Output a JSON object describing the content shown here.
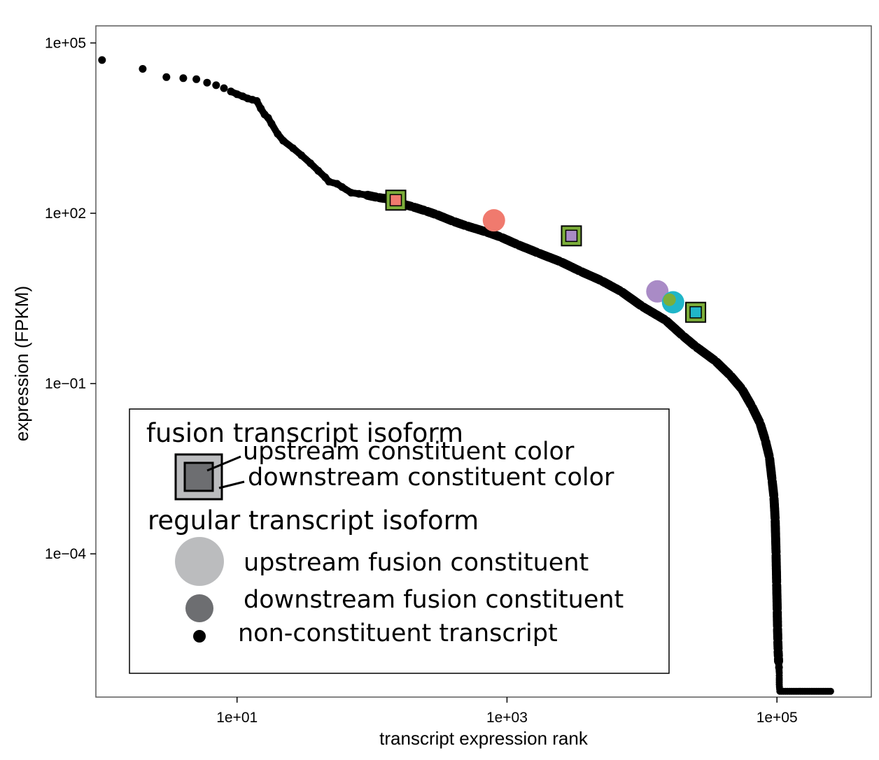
{
  "chart_data": {
    "type": "scatter",
    "title": "",
    "xlabel": "transcript expression rank",
    "ylabel": "expression (FPKM)",
    "x_scale": "log10",
    "y_scale": "log10",
    "xlim": [
      0.9,
      500000
    ],
    "ylim": [
      3e-07,
      200000
    ],
    "x_ticks": [
      {
        "value": 10,
        "label": "1e+01"
      },
      {
        "value": 1000,
        "label": "1e+03"
      },
      {
        "value": 100000,
        "label": "1e+05"
      }
    ],
    "y_ticks": [
      {
        "value": 100000,
        "label": "1e+05"
      },
      {
        "value": 100,
        "label": "1e+02"
      },
      {
        "value": 0.1,
        "label": "1e−01"
      },
      {
        "value": 0.0001,
        "label": "1e−04"
      }
    ],
    "grid": false,
    "legend_position": "bottom-left",
    "series": [
      {
        "role": "non-constituent transcript",
        "marker": "small black circle",
        "color": "#000000",
        "points": [
          [
            1,
            50000
          ],
          [
            2,
            35000
          ],
          [
            3,
            25000
          ],
          [
            4,
            24000
          ],
          [
            5,
            23000
          ],
          [
            6,
            20000
          ],
          [
            7,
            18000
          ],
          [
            8,
            16000
          ],
          [
            9,
            14000
          ],
          [
            10,
            12500
          ],
          [
            11,
            11500
          ],
          [
            12,
            10500
          ],
          [
            13,
            10000
          ],
          [
            14,
            9500
          ],
          [
            15,
            7000
          ],
          [
            16,
            5500
          ],
          [
            17,
            4800
          ],
          [
            18,
            3800
          ],
          [
            20,
            2500
          ],
          [
            22,
            1900
          ],
          [
            26,
            1400
          ],
          [
            30,
            1050
          ],
          [
            35,
            760
          ],
          [
            40,
            560
          ],
          [
            45,
            430
          ],
          [
            48,
            360
          ],
          [
            55,
            330
          ],
          [
            60,
            290
          ],
          [
            70,
            230
          ],
          [
            80,
            220
          ],
          [
            90,
            210
          ],
          [
            110,
            190
          ],
          [
            140,
            175
          ],
          [
            160,
            150
          ],
          [
            200,
            130
          ],
          [
            250,
            110
          ],
          [
            300,
            95
          ],
          [
            400,
            72
          ],
          [
            500,
            60
          ],
          [
            700,
            47
          ],
          [
            900,
            38
          ],
          [
            1200,
            28
          ],
          [
            1700,
            20
          ],
          [
            2500,
            14
          ],
          [
            3500,
            9.5
          ],
          [
            5000,
            6.5
          ],
          [
            7000,
            4.2
          ],
          [
            10000,
            2.3
          ],
          [
            15000,
            1.3
          ],
          [
            20000,
            0.7
          ],
          [
            25000,
            0.45
          ],
          [
            35000,
            0.25
          ],
          [
            45000,
            0.14
          ],
          [
            55000,
            0.08
          ],
          [
            65000,
            0.04
          ],
          [
            75000,
            0.02
          ],
          [
            82000,
            0.01
          ],
          [
            88000,
            0.005
          ],
          [
            92000,
            0.002
          ],
          [
            95000,
            0.001
          ],
          [
            97000,
            0.0004
          ],
          [
            98500,
            0.0001
          ],
          [
            99500,
            3e-05
          ],
          [
            100500,
            1e-05
          ],
          [
            101000,
            5e-06
          ],
          [
            101500,
            3e-06
          ],
          [
            102000,
            2e-06
          ],
          [
            102500,
            1.5e-06
          ],
          [
            103000,
            1.2e-06
          ],
          [
            103500,
            1e-06
          ],
          [
            104000,
            8e-07
          ],
          [
            104000,
            6.5e-07
          ],
          [
            104000,
            5e-07
          ],
          [
            105000,
            3.8e-07
          ],
          [
            150000,
            3.8e-07
          ],
          [
            250000,
            3.8e-07
          ]
        ]
      },
      {
        "role": "fusion transcript isoform",
        "marker": "square",
        "points": [
          {
            "x": 150,
            "y": 170,
            "outer": "#7cae3a",
            "inner": "#f07a6e"
          },
          {
            "x": 3000,
            "y": 40,
            "outer": "#7cae3a",
            "inner": "#a98bc6"
          },
          {
            "x": 25000,
            "y": 1.8,
            "outer": "#7cae3a",
            "inner": "#20b6c8"
          }
        ]
      },
      {
        "role": "upstream fusion constituent",
        "marker": "large circle",
        "points": [
          {
            "x": 800,
            "y": 75,
            "color": "#f07a6e"
          },
          {
            "x": 13000,
            "y": 4.2,
            "color": "#a98bc6"
          },
          {
            "x": 17000,
            "y": 2.7,
            "color": "#20b6c8"
          }
        ]
      },
      {
        "role": "downstream fusion constituent",
        "marker": "medium circle",
        "points": [
          {
            "x": 16000,
            "y": 3.0,
            "color": "#7cae3a"
          }
        ]
      }
    ],
    "legend": {
      "fusion_heading": "fusion transcript isoform",
      "upstream_color_label": "upstream constituent color",
      "downstream_color_label": "downstream constituent color",
      "regular_heading": "regular transcript isoform",
      "upstream_label": "upstream fusion constituent",
      "downstream_label": "downstream fusion constituent",
      "nonconstituent_label": "non-constituent transcript",
      "swatch_outer_color": "#bbbcbe",
      "swatch_inner_color": "#6d6e71",
      "upstream_swatch_color": "#bbbcbe",
      "downstream_swatch_color": "#6d6e71"
    }
  }
}
